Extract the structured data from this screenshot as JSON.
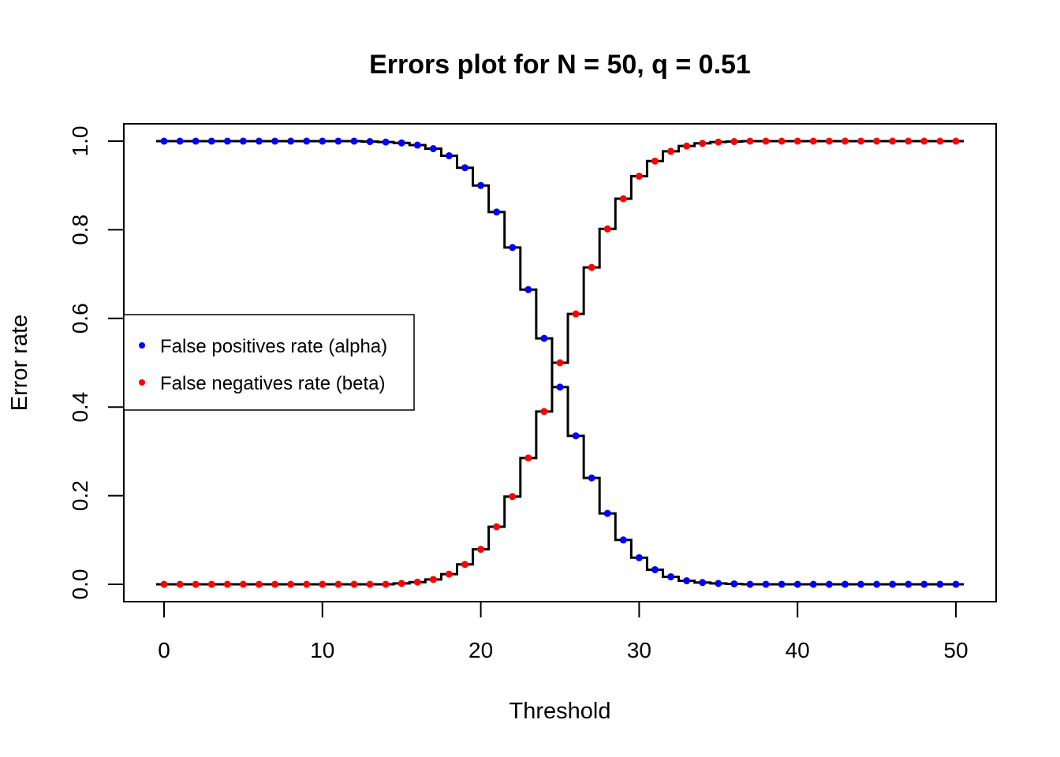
{
  "chart_data": {
    "type": "line",
    "title": "Errors plot for N = 50, q = 0.51",
    "xlabel": "Threshold",
    "ylabel": "Error rate",
    "xlim": [
      0,
      50
    ],
    "ylim": [
      0,
      1
    ],
    "x_ticks": [
      0,
      10,
      20,
      30,
      40,
      50
    ],
    "x_tick_labels": [
      "0",
      "10",
      "20",
      "30",
      "40",
      "50"
    ],
    "y_ticks": [
      0,
      0.2,
      0.4,
      0.6,
      0.8,
      1.0
    ],
    "y_tick_labels": [
      "0.0",
      "0.2",
      "0.4",
      "0.6",
      "0.8",
      "1.0"
    ],
    "grid": false,
    "legend_position": "left",
    "x": [
      0,
      1,
      2,
      3,
      4,
      5,
      6,
      7,
      8,
      9,
      10,
      11,
      12,
      13,
      14,
      15,
      16,
      17,
      18,
      19,
      20,
      21,
      22,
      23,
      24,
      25,
      26,
      27,
      28,
      29,
      30,
      31,
      32,
      33,
      34,
      35,
      36,
      37,
      38,
      39,
      40,
      41,
      42,
      43,
      44,
      45,
      46,
      47,
      48,
      49,
      50
    ],
    "series": [
      {
        "name": "False positives rate (alpha)",
        "color": "#0000ff",
        "values": [
          1.0,
          1.0,
          1.0,
          1.0,
          1.0,
          1.0,
          1.0,
          1.0,
          1.0,
          1.0,
          1.0,
          1.0,
          1.0,
          0.999,
          0.998,
          0.996,
          0.991,
          0.983,
          0.967,
          0.94,
          0.9,
          0.84,
          0.76,
          0.665,
          0.555,
          0.445,
          0.335,
          0.24,
          0.16,
          0.1,
          0.06,
          0.033,
          0.017,
          0.008,
          0.004,
          0.002,
          0.001,
          0.0,
          0.0,
          0.0,
          0.0,
          0.0,
          0.0,
          0.0,
          0.0,
          0.0,
          0.0,
          0.0,
          0.0,
          0.0,
          0.0
        ]
      },
      {
        "name": "False negatives rate (beta)",
        "color": "#ff0000",
        "values": [
          0.0,
          0.0,
          0.0,
          0.0,
          0.0,
          0.0,
          0.0,
          0.0,
          0.0,
          0.0,
          0.0,
          0.0,
          0.0,
          0.0,
          0.0,
          0.002,
          0.005,
          0.011,
          0.023,
          0.045,
          0.079,
          0.13,
          0.198,
          0.285,
          0.39,
          0.5,
          0.61,
          0.715,
          0.802,
          0.87,
          0.921,
          0.955,
          0.977,
          0.989,
          0.995,
          0.998,
          0.999,
          1.0,
          1.0,
          1.0,
          1.0,
          1.0,
          1.0,
          1.0,
          1.0,
          1.0,
          1.0,
          1.0,
          1.0,
          1.0,
          1.0
        ]
      }
    ]
  }
}
